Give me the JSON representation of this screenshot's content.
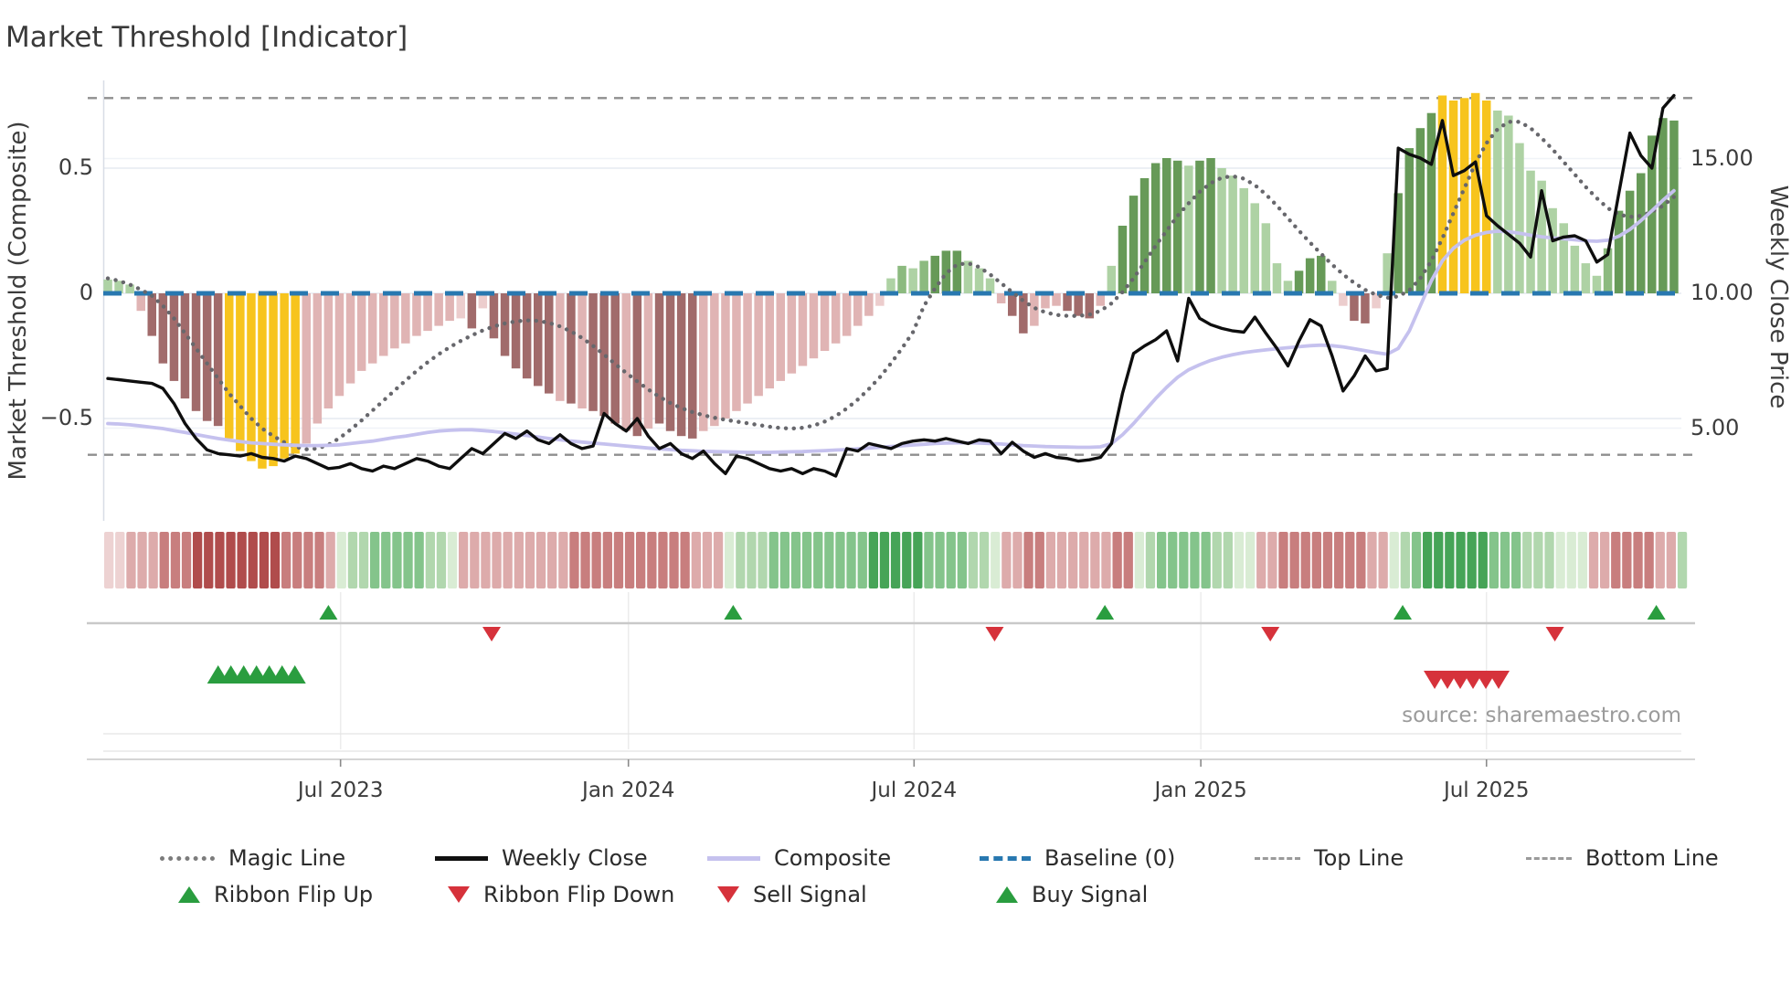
{
  "page_title": "Market Threshold [Indicator]",
  "source": "source: sharemaestro.com",
  "legend": {
    "row1": [
      "Magic Line",
      "Weekly Close",
      "Composite",
      "Baseline (0)",
      "Top Line",
      "Bottom Line"
    ],
    "row2": [
      "Ribbon Flip Up",
      "Ribbon Flip Down",
      "Sell Signal",
      "Buy Signal"
    ]
  },
  "chart_data": {
    "type": "mixed",
    "title": "Market Threshold [Indicator]",
    "left_axis": {
      "label": "Market Threshold (Composite)",
      "ticks": [
        {
          "label": "0.5",
          "value": 0.5
        },
        {
          "label": "0",
          "value": 0
        },
        {
          "label": "−0.5",
          "value": -0.5
        }
      ],
      "range": [
        -0.85,
        0.85
      ],
      "grid": true
    },
    "right_axis": {
      "label": "Weekly Close Price",
      "ticks": [
        {
          "label": "15.00",
          "price": 15
        },
        {
          "label": "10.00",
          "price": 10
        },
        {
          "label": "5.00",
          "price": 5
        }
      ]
    },
    "x_axis": {
      "ticks": [
        {
          "label": "Jul 2023",
          "week": 21.1
        },
        {
          "label": "Jan 2024",
          "week": 47.2
        },
        {
          "label": "Jul 2024",
          "week": 73.1
        },
        {
          "label": "Jan 2025",
          "week": 99.1
        },
        {
          "label": "Jul 2025",
          "week": 125.0
        }
      ]
    },
    "guides": {
      "baseline": {
        "label": "Baseline (0)",
        "value": 0,
        "color": "#2878b0"
      },
      "top_line": {
        "label": "Top Line",
        "value": 0.78,
        "color": "#8f8f8f"
      },
      "bottom_line": {
        "label": "Bottom Line",
        "value": -0.645,
        "color": "#8f8f8f"
      }
    },
    "bar_palette": {
      "dr": "#a16b6b",
      "lr": "#e0b4b4",
      "pr": "#eccdcd",
      "y": "#f7c41d",
      "dg": "#679a58",
      "mg": "#8cba7f",
      "lg": "#aed2a4"
    },
    "ribbon_palette": {
      "-3": "#b04c4c",
      "-2": "#c87e7e",
      "-1": "#ddabab",
      "-0.5": "#edd2d2",
      "0.5": "#d9ecd4",
      "1": "#b1d7ae",
      "2": "#84c48b",
      "3": "#46a457"
    },
    "line_colors": {
      "weekly_close": "#0e0e0e",
      "composite": "#c5c1ee",
      "magic": "#67676c"
    },
    "signal_colors": {
      "up": "#2a9d3f",
      "down": "#d6323b"
    },
    "bars": {
      "name": "Market Threshold histogram",
      "values": [
        0.055,
        0.05,
        0.035,
        -0.07,
        -0.17,
        -0.28,
        -0.35,
        -0.42,
        -0.47,
        -0.51,
        -0.53,
        -0.58,
        -0.63,
        -0.67,
        -0.7,
        -0.69,
        -0.66,
        -0.64,
        -0.6,
        -0.52,
        -0.46,
        -0.41,
        -0.36,
        -0.31,
        -0.28,
        -0.25,
        -0.22,
        -0.2,
        -0.17,
        -0.15,
        -0.13,
        -0.11,
        -0.1,
        -0.14,
        -0.06,
        -0.18,
        -0.25,
        -0.3,
        -0.34,
        -0.37,
        -0.4,
        -0.43,
        -0.44,
        -0.46,
        -0.47,
        -0.49,
        -0.52,
        -0.55,
        -0.57,
        -0.54,
        -0.52,
        -0.55,
        -0.57,
        -0.58,
        -0.55,
        -0.53,
        -0.5,
        -0.47,
        -0.44,
        -0.41,
        -0.38,
        -0.35,
        -0.32,
        -0.29,
        -0.26,
        -0.23,
        -0.2,
        -0.17,
        -0.13,
        -0.09,
        -0.05,
        0.06,
        0.11,
        0.1,
        0.13,
        0.15,
        0.17,
        0.17,
        0.13,
        0.1,
        0.06,
        -0.04,
        -0.09,
        -0.16,
        -0.13,
        -0.06,
        -0.05,
        -0.07,
        -0.09,
        -0.1,
        -0.05,
        0.11,
        0.27,
        0.39,
        0.46,
        0.52,
        0.54,
        0.53,
        0.51,
        0.53,
        0.54,
        0.5,
        0.47,
        0.42,
        0.36,
        0.28,
        0.12,
        0.05,
        0.09,
        0.14,
        0.15,
        0.05,
        -0.05,
        -0.11,
        -0.12,
        -0.06,
        0.16,
        0.4,
        0.58,
        0.66,
        0.72,
        0.79,
        0.77,
        0.78,
        0.8,
        0.77,
        0.73,
        0.71,
        0.6,
        0.49,
        0.45,
        0.34,
        0.28,
        0.19,
        0.12,
        0.07,
        0.18,
        0.33,
        0.41,
        0.48,
        0.63,
        0.7,
        0.69
      ],
      "colors": [
        "lg",
        "lg",
        "lg",
        "lr",
        "dr",
        "dr",
        "dr",
        "dr",
        "dr",
        "dr",
        "dr",
        "y",
        "y",
        "y",
        "y",
        "y",
        "y",
        "y",
        "lr",
        "lr",
        "lr",
        "lr",
        "lr",
        "lr",
        "lr",
        "lr",
        "lr",
        "lr",
        "lr",
        "lr",
        "lr",
        "lr",
        "pr",
        "dr",
        "pr",
        "dr",
        "dr",
        "dr",
        "dr",
        "dr",
        "dr",
        "lr",
        "dr",
        "lr",
        "dr",
        "dr",
        "dr",
        "lr",
        "dr",
        "lr",
        "dr",
        "dr",
        "dr",
        "dr",
        "lr",
        "lr",
        "lr",
        "lr",
        "lr",
        "lr",
        "lr",
        "lr",
        "lr",
        "lr",
        "lr",
        "lr",
        "lr",
        "lr",
        "lr",
        "lr",
        "pr",
        "lg",
        "mg",
        "lg",
        "mg",
        "dg",
        "dg",
        "dg",
        "lg",
        "lg",
        "lg",
        "lr",
        "dr",
        "dr",
        "lr",
        "lr",
        "lr",
        "dr",
        "dr",
        "dr",
        "lr",
        "lg",
        "dg",
        "dg",
        "dg",
        "dg",
        "dg",
        "dg",
        "lg",
        "dg",
        "dg",
        "lg",
        "lg",
        "lg",
        "lg",
        "lg",
        "lg",
        "lg",
        "dg",
        "dg",
        "dg",
        "lg",
        "pr",
        "dr",
        "dr",
        "pr",
        "lg",
        "dg",
        "dg",
        "dg",
        "dg",
        "y",
        "y",
        "y",
        "y",
        "y",
        "lg",
        "lg",
        "lg",
        "lg",
        "lg",
        "lg",
        "lg",
        "lg",
        "lg",
        "lg",
        "mg",
        "dg",
        "dg",
        "dg",
        "dg",
        "dg",
        "dg"
      ]
    },
    "series": [
      {
        "name": "Magic Line",
        "style": "dotted",
        "values": [
          0.06,
          0.05,
          0.035,
          0.015,
          -0.01,
          -0.05,
          -0.1,
          -0.16,
          -0.22,
          -0.28,
          -0.34,
          -0.4,
          -0.45,
          -0.5,
          -0.54,
          -0.57,
          -0.595,
          -0.613,
          -0.623,
          -0.62,
          -0.605,
          -0.578,
          -0.545,
          -0.508,
          -0.468,
          -0.428,
          -0.388,
          -0.348,
          -0.31,
          -0.275,
          -0.243,
          -0.215,
          -0.19,
          -0.168,
          -0.148,
          -0.132,
          -0.12,
          -0.112,
          -0.108,
          -0.11,
          -0.118,
          -0.132,
          -0.152,
          -0.178,
          -0.21,
          -0.245,
          -0.282,
          -0.318,
          -0.352,
          -0.384,
          -0.413,
          -0.438,
          -0.458,
          -0.474,
          -0.487,
          -0.497,
          -0.505,
          -0.512,
          -0.519,
          -0.526,
          -0.533,
          -0.538,
          -0.54,
          -0.537,
          -0.528,
          -0.512,
          -0.49,
          -0.46,
          -0.424,
          -0.382,
          -0.335,
          -0.28,
          -0.22,
          -0.155,
          -0.05,
          0.02,
          0.08,
          0.115,
          0.12,
          0.105,
          0.075,
          0.04,
          0.005,
          -0.03,
          -0.058,
          -0.076,
          -0.086,
          -0.09,
          -0.09,
          -0.085,
          -0.07,
          -0.04,
          0.005,
          0.06,
          0.125,
          0.19,
          0.25,
          0.31,
          0.36,
          0.405,
          0.44,
          0.462,
          0.468,
          0.458,
          0.432,
          0.395,
          0.35,
          0.3,
          0.25,
          0.203,
          0.158,
          0.115,
          0.076,
          0.042,
          0.014,
          -0.006,
          -0.018,
          -0.012,
          0.012,
          0.06,
          0.13,
          0.22,
          0.32,
          0.42,
          0.52,
          0.6,
          0.655,
          0.685,
          0.685,
          0.66,
          0.62,
          0.575,
          0.525,
          0.475,
          0.425,
          0.38,
          0.34,
          0.315,
          0.305,
          0.31,
          0.325,
          0.35,
          0.385
        ]
      },
      {
        "name": "Weekly Close",
        "style": "solid",
        "values": [
          -0.34,
          -0.345,
          -0.35,
          -0.355,
          -0.36,
          -0.38,
          -0.44,
          -0.52,
          -0.58,
          -0.625,
          -0.64,
          -0.645,
          -0.65,
          -0.64,
          -0.655,
          -0.66,
          -0.67,
          -0.65,
          -0.66,
          -0.68,
          -0.7,
          -0.695,
          -0.68,
          -0.7,
          -0.71,
          -0.69,
          -0.7,
          -0.68,
          -0.66,
          -0.67,
          -0.69,
          -0.7,
          -0.66,
          -0.62,
          -0.64,
          -0.6,
          -0.56,
          -0.58,
          -0.55,
          -0.585,
          -0.6,
          -0.565,
          -0.6,
          -0.62,
          -0.61,
          -0.48,
          -0.52,
          -0.55,
          -0.5,
          -0.57,
          -0.62,
          -0.6,
          -0.64,
          -0.66,
          -0.63,
          -0.68,
          -0.72,
          -0.65,
          -0.66,
          -0.68,
          -0.7,
          -0.71,
          -0.7,
          -0.72,
          -0.7,
          -0.71,
          -0.73,
          -0.62,
          -0.63,
          -0.6,
          -0.61,
          -0.62,
          -0.6,
          -0.59,
          -0.585,
          -0.59,
          -0.58,
          -0.59,
          -0.6,
          -0.585,
          -0.59,
          -0.64,
          -0.595,
          -0.63,
          -0.655,
          -0.64,
          -0.655,
          -0.66,
          -0.67,
          -0.665,
          -0.655,
          -0.6,
          -0.4,
          -0.24,
          -0.21,
          -0.185,
          -0.15,
          -0.27,
          -0.02,
          -0.1,
          -0.125,
          -0.14,
          -0.15,
          -0.155,
          -0.095,
          -0.16,
          -0.22,
          -0.29,
          -0.19,
          -0.105,
          -0.13,
          -0.25,
          -0.39,
          -0.33,
          -0.25,
          -0.31,
          -0.3,
          0.58,
          0.555,
          0.54,
          0.515,
          0.69,
          0.47,
          0.49,
          0.525,
          0.31,
          0.27,
          0.235,
          0.2,
          0.145,
          0.41,
          0.21,
          0.225,
          0.23,
          0.21,
          0.125,
          0.155,
          0.4,
          0.64,
          0.55,
          0.5,
          0.74,
          0.79
        ]
      },
      {
        "name": "Composite",
        "style": "solid",
        "values": [
          -0.52,
          -0.522,
          -0.525,
          -0.53,
          -0.535,
          -0.54,
          -0.548,
          -0.556,
          -0.564,
          -0.572,
          -0.58,
          -0.586,
          -0.592,
          -0.597,
          -0.6,
          -0.603,
          -0.605,
          -0.607,
          -0.608,
          -0.608,
          -0.607,
          -0.605,
          -0.6,
          -0.595,
          -0.59,
          -0.583,
          -0.576,
          -0.57,
          -0.563,
          -0.556,
          -0.55,
          -0.547,
          -0.545,
          -0.545,
          -0.548,
          -0.552,
          -0.557,
          -0.562,
          -0.568,
          -0.574,
          -0.58,
          -0.585,
          -0.59,
          -0.594,
          -0.598,
          -0.602,
          -0.606,
          -0.61,
          -0.614,
          -0.618,
          -0.621,
          -0.624,
          -0.627,
          -0.629,
          -0.631,
          -0.632,
          -0.633,
          -0.634,
          -0.635,
          -0.635,
          -0.635,
          -0.634,
          -0.633,
          -0.632,
          -0.63,
          -0.628,
          -0.626,
          -0.624,
          -0.621,
          -0.618,
          -0.615,
          -0.612,
          -0.609,
          -0.606,
          -0.603,
          -0.6,
          -0.598,
          -0.597,
          -0.597,
          -0.598,
          -0.6,
          -0.602,
          -0.605,
          -0.608,
          -0.61,
          -0.612,
          -0.613,
          -0.614,
          -0.615,
          -0.615,
          -0.613,
          -0.6,
          -0.565,
          -0.52,
          -0.47,
          -0.42,
          -0.375,
          -0.335,
          -0.305,
          -0.285,
          -0.268,
          -0.255,
          -0.245,
          -0.237,
          -0.231,
          -0.226,
          -0.221,
          -0.217,
          -0.213,
          -0.209,
          -0.207,
          -0.209,
          -0.214,
          -0.221,
          -0.229,
          -0.237,
          -0.243,
          -0.22,
          -0.15,
          -0.05,
          0.05,
          0.13,
          0.18,
          0.212,
          0.232,
          0.243,
          0.248,
          0.246,
          0.24,
          0.232,
          0.226,
          0.221,
          0.218,
          0.214,
          0.21,
          0.208,
          0.212,
          0.228,
          0.255,
          0.29,
          0.33,
          0.372,
          0.41
        ]
      }
    ],
    "ribbon": {
      "name": "Ribbon heat strip",
      "levels": [
        -0.5,
        -0.5,
        -1,
        -1,
        -1,
        -2,
        -2,
        -2,
        -3,
        -3,
        -3,
        -3,
        -3,
        -3,
        -3,
        -3,
        -2,
        -2,
        -2,
        -2,
        -1,
        0.5,
        1,
        1,
        2,
        2,
        2,
        2,
        2,
        1,
        1,
        0.5,
        -1,
        -1,
        -1,
        -1,
        -1,
        -1,
        -1,
        -1,
        -1,
        -1,
        -2,
        -2,
        -2,
        -2,
        -2,
        -2,
        -2,
        -2,
        -2,
        -2,
        -2,
        -1,
        -1,
        -1,
        0.5,
        1,
        1,
        1,
        2,
        2,
        2,
        2,
        2,
        2,
        2,
        2,
        2,
        3,
        3,
        3,
        3,
        3,
        2,
        2,
        2,
        2,
        1,
        1,
        0.5,
        -1,
        -1,
        -2,
        -2,
        -1,
        -1,
        -1,
        -1,
        -1,
        -1,
        -2,
        -2,
        0.5,
        1,
        2,
        2,
        2,
        2,
        2,
        1,
        1,
        0.5,
        0.5,
        -1,
        -1,
        -2,
        -2,
        -2,
        -2,
        -2,
        -2,
        -2,
        -2,
        -1,
        -1,
        0.5,
        1,
        2,
        3,
        3,
        3,
        3,
        3,
        3,
        2,
        2,
        2,
        1,
        1,
        1,
        0.5,
        0.5,
        0.5,
        -1,
        -1,
        -2,
        -2,
        -2,
        -2,
        -1,
        -1,
        1
      ]
    },
    "signals": {
      "ribbon_flip_up_weeks": [
        20,
        56.7,
        90.4,
        117.4,
        140.4
      ],
      "ribbon_flip_down_weeks": [
        34.8,
        80.4,
        105.4,
        131.2
      ],
      "buy_signal_weeks": [
        10,
        11.16,
        12.32,
        13.48,
        14.64,
        15.8,
        16.96
      ],
      "sell_signal_weeks": [
        120.3,
        121.46,
        122.62,
        123.78,
        124.94,
        126.1
      ]
    }
  }
}
